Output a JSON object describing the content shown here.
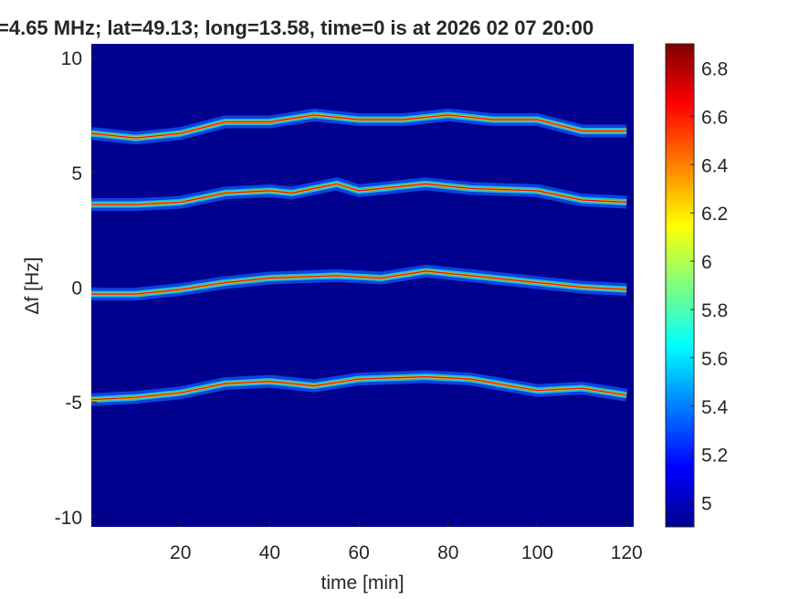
{
  "chart_data": {
    "type": "spectrogram",
    "title": "=4.65 MHz;  lat=49.13; long=13.58, time=0 is at 2026 02 07 20:00",
    "x_label": "time [min]",
    "y_label": "Δf [Hz]",
    "xlim": [
      0,
      121.6
    ],
    "ylim": [
      -10.44,
      10.6
    ],
    "xticks": [
      20,
      40,
      60,
      80,
      100,
      120
    ],
    "yticks": [
      -10,
      -5,
      0,
      5,
      10
    ],
    "clim": [
      4.9,
      6.9
    ],
    "cticks": [
      5,
      5.2,
      5.4,
      5.6,
      5.8,
      6,
      6.2,
      6.4,
      6.6,
      6.8
    ],
    "colormap": "jet",
    "series": [
      {
        "x": [
          0,
          10,
          20,
          30,
          40,
          50,
          60,
          70,
          80,
          90,
          100,
          110,
          120
        ],
        "values": [
          6.7,
          6.5,
          6.7,
          7.2,
          7.2,
          7.5,
          7.3,
          7.3,
          7.5,
          7.3,
          7.3,
          6.8,
          6.8
        ]
      },
      {
        "x": [
          0,
          10,
          20,
          30,
          40,
          45,
          55,
          60,
          75,
          85,
          100,
          110,
          120
        ],
        "values": [
          3.6,
          3.6,
          3.7,
          4.1,
          4.2,
          4.1,
          4.5,
          4.2,
          4.5,
          4.3,
          4.2,
          3.8,
          3.7
        ]
      },
      {
        "x": [
          0,
          10,
          20,
          30,
          40,
          55,
          65,
          75,
          85,
          100,
          110,
          120
        ],
        "values": [
          -0.3,
          -0.3,
          -0.1,
          0.2,
          0.4,
          0.5,
          0.4,
          0.7,
          0.5,
          0.2,
          0.0,
          -0.1
        ]
      },
      {
        "x": [
          0,
          10,
          20,
          30,
          40,
          50,
          60,
          75,
          85,
          100,
          110,
          120
        ],
        "values": [
          -4.9,
          -4.8,
          -4.6,
          -4.2,
          -4.1,
          -4.3,
          -4.0,
          -3.9,
          -4.0,
          -4.5,
          -4.4,
          -4.7
        ]
      }
    ]
  }
}
